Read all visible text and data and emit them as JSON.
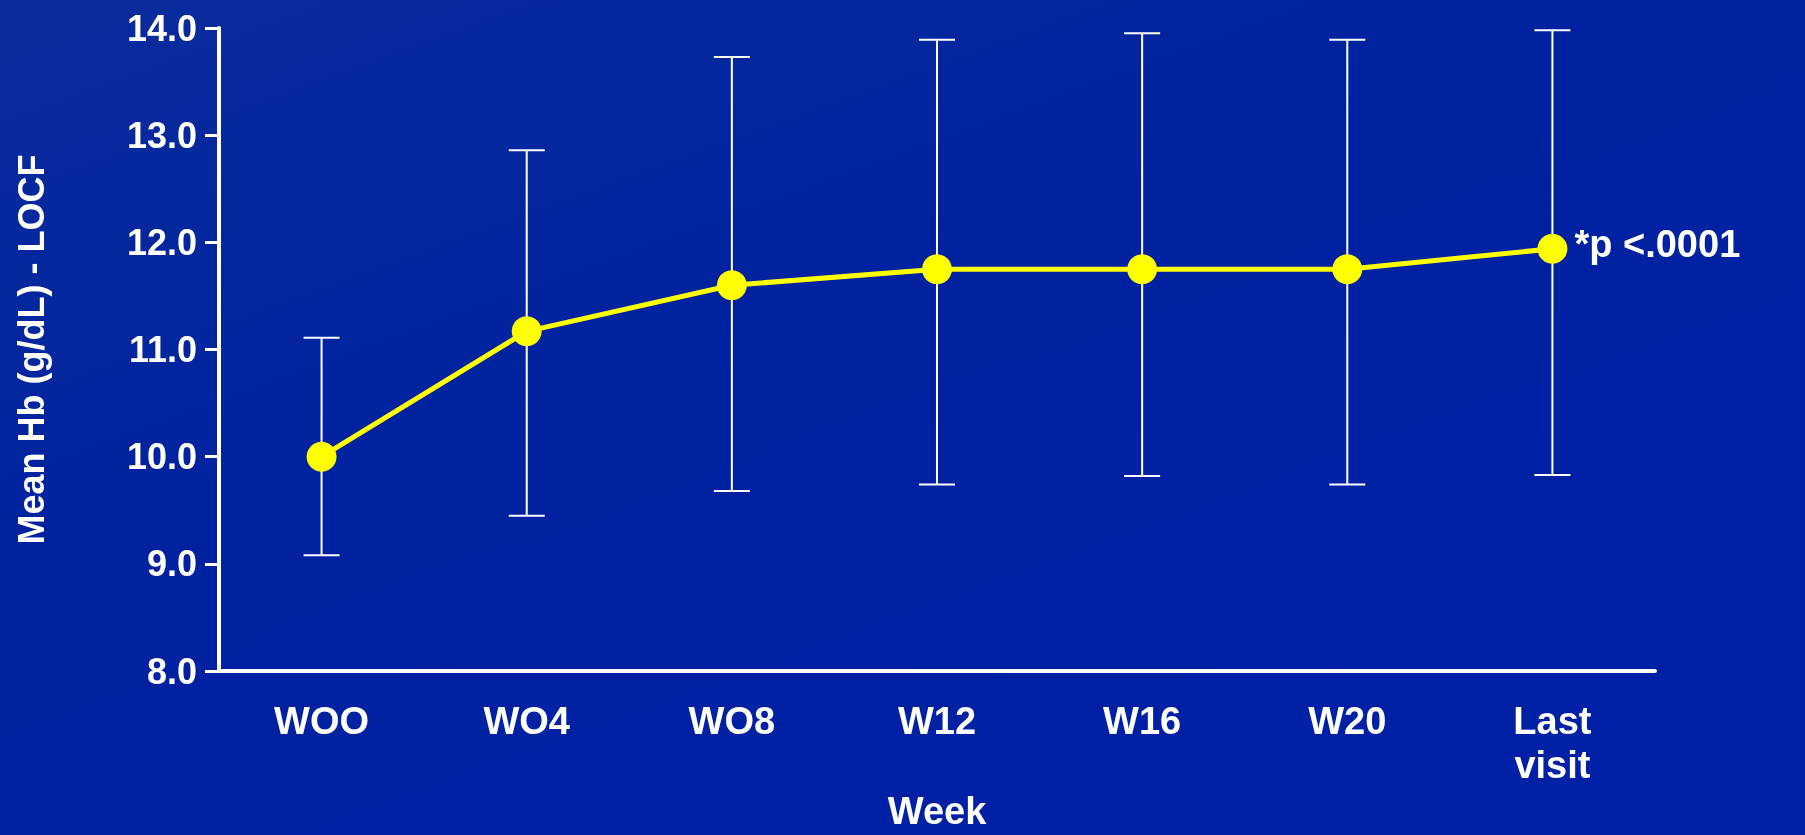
{
  "chart_data": {
    "type": "line",
    "categories": [
      "WOO",
      "WO4",
      "WO8",
      "W12",
      "W16",
      "W20",
      "Last\nvisit"
    ],
    "xlabel": "Week",
    "ylabel": "Mean Hb (g/dL) - LOCF",
    "series": [
      {
        "color": "#ffff00",
        "values": [
          10.0,
          11.17,
          11.6,
          11.75,
          11.75,
          11.75,
          11.94
        ],
        "errors": [
          [
            9.08,
            11.11
          ],
          [
            9.45,
            12.86
          ],
          [
            9.68,
            13.73
          ],
          [
            9.74,
            13.89
          ],
          [
            9.82,
            13.95
          ],
          [
            9.74,
            13.89
          ],
          [
            9.83,
            13.98
          ]
        ]
      }
    ],
    "ylim": [
      8,
      14
    ],
    "yticks": [
      {
        "value": 8,
        "label": "8.0"
      },
      {
        "value": 9,
        "label": "9.0"
      },
      {
        "value": 10,
        "label": "10.0"
      },
      {
        "value": 11,
        "label": "11.0"
      },
      {
        "value": 12,
        "label": "12.0"
      },
      {
        "value": 13,
        "label": "13.0"
      },
      {
        "value": 14,
        "label": "14.0"
      }
    ],
    "annotations": [
      {
        "text": "*p <.0001",
        "x": "Last\nvisit",
        "y": 11.94
      }
    ],
    "marker": "circle",
    "grid": false
  }
}
